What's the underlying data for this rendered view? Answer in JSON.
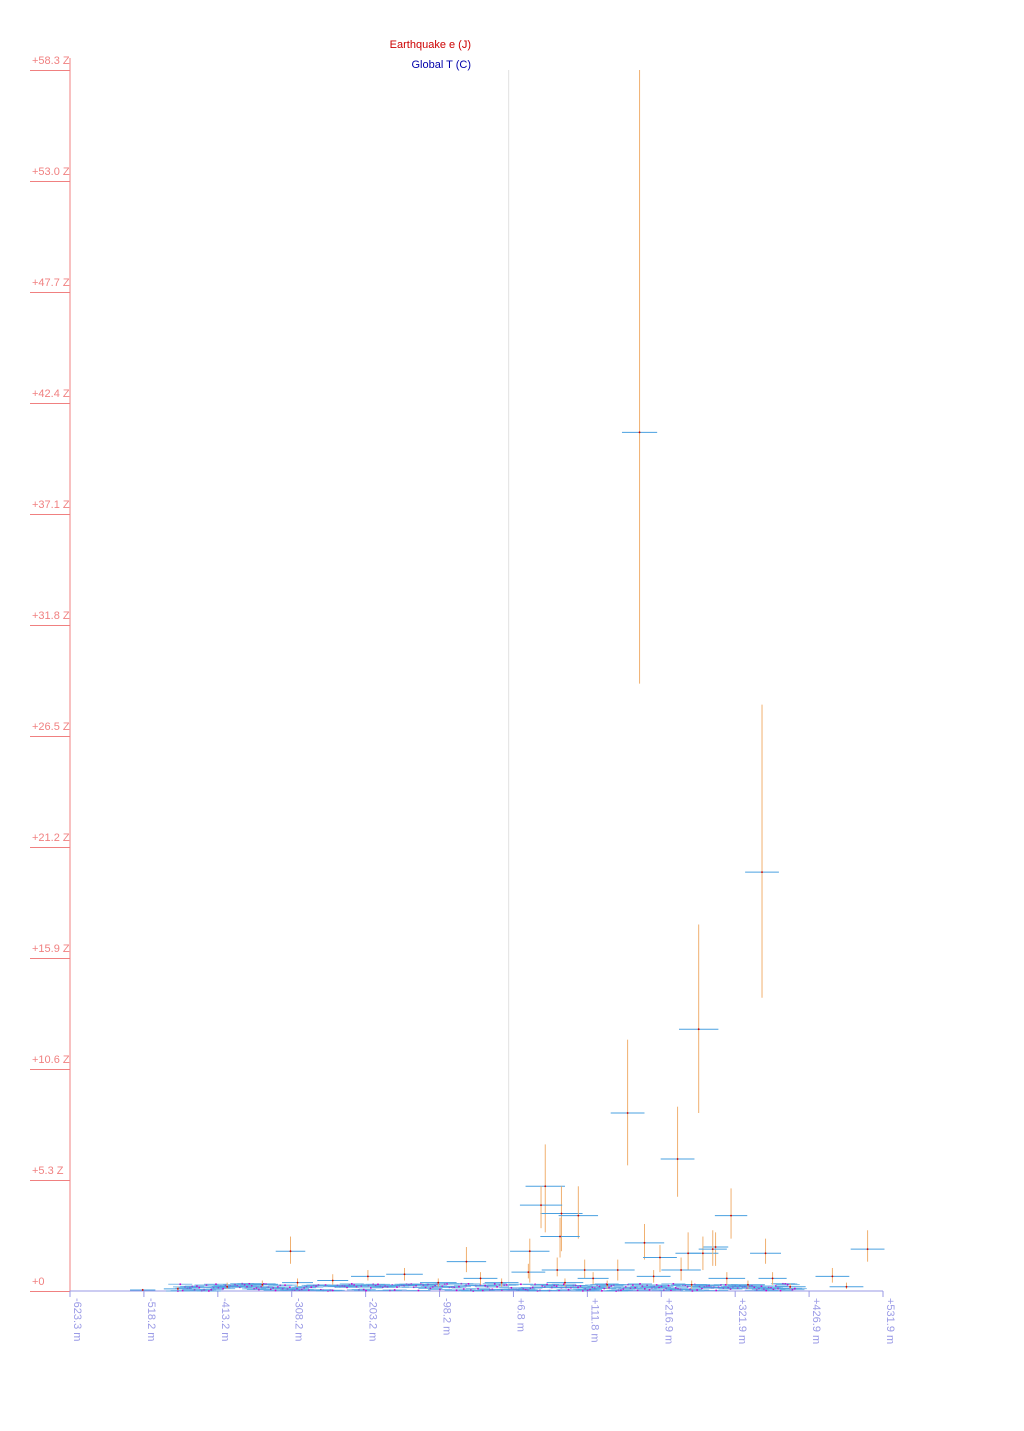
{
  "chart_data": {
    "type": "scatter",
    "legend": {
      "placement": "top-center",
      "entries": [
        {
          "label": "Earthquake e (J)",
          "color": "#cc0000"
        },
        {
          "label": "Global T (C)",
          "color": "#0000aa"
        }
      ]
    },
    "colors": {
      "y_axis": "#f08080",
      "x_axis": "#9a9ae6",
      "vertical_error": "#f0b070",
      "horizontal_error": "#4aa0e0",
      "points": "#cc0000",
      "dense_points": "#cc00cc"
    },
    "x_ticks": [
      "-623.3 m",
      "-518.2 m",
      "-413.2 m",
      "-308.2 m",
      "-203.2 m",
      "-98.2 m",
      "+6.8 m",
      "+111.8 m",
      "+216.9 m",
      "+321.9 m",
      "+426.9 m",
      "+531.9 m"
    ],
    "y_ticks": [
      "+0",
      "+5.3 Z",
      "+10.6 Z",
      "+15.9 Z",
      "+21.2 Z",
      "+26.5 Z",
      "+31.8 Z",
      "+37.1 Z",
      "+42.4 Z",
      "+47.7 Z",
      "+53.0 Z",
      "+58.3 Z"
    ],
    "xlim": [
      -623.3,
      531.9
    ],
    "ylim": [
      0,
      58.3
    ],
    "reference_line_x": 0,
    "grid": false,
    "points": [
      {
        "x": 186,
        "y": 41.0,
        "xerr": 25,
        "ylo": 29.0,
        "yhi": 58.3
      },
      {
        "x": 360,
        "y": 20.0,
        "xerr": 24,
        "ylo": 14.0,
        "yhi": 28.0
      },
      {
        "x": 270,
        "y": 12.5,
        "xerr": 28,
        "ylo": 8.5,
        "yhi": 17.5
      },
      {
        "x": 169,
        "y": 8.5,
        "xerr": 24,
        "ylo": 6.0,
        "yhi": 12.0
      },
      {
        "x": 240,
        "y": 6.3,
        "xerr": 24,
        "ylo": 4.5,
        "yhi": 8.8
      },
      {
        "x": 52,
        "y": 5.0,
        "xerr": 28,
        "ylo": 2.8,
        "yhi": 7.0
      },
      {
        "x": 75,
        "y": 3.7,
        "xerr": 30,
        "ylo": 1.9,
        "yhi": 5.0
      },
      {
        "x": 99,
        "y": 3.6,
        "xerr": 28,
        "ylo": 2.5,
        "yhi": 5.0
      },
      {
        "x": 46,
        "y": 4.1,
        "xerr": 30,
        "ylo": 3.0,
        "yhi": 5.0
      },
      {
        "x": 73,
        "y": 2.6,
        "xerr": 28,
        "ylo": 1.6,
        "yhi": 3.5
      },
      {
        "x": 316,
        "y": 3.6,
        "xerr": 23,
        "ylo": 2.5,
        "yhi": 4.9
      },
      {
        "x": 193,
        "y": 2.3,
        "xerr": 28,
        "ylo": 1.5,
        "yhi": 3.2
      },
      {
        "x": 294,
        "y": 2.1,
        "xerr": 18,
        "ylo": 1.2,
        "yhi": 2.8
      },
      {
        "x": 276,
        "y": 1.8,
        "xerr": 22,
        "ylo": 1.0,
        "yhi": 2.6
      },
      {
        "x": 255,
        "y": 1.8,
        "xerr": 18,
        "ylo": 1.0,
        "yhi": 2.8
      },
      {
        "x": 290,
        "y": 2.0,
        "xerr": 20,
        "ylo": 1.2,
        "yhi": 2.9
      },
      {
        "x": -310,
        "y": 1.9,
        "xerr": 21,
        "ylo": 1.3,
        "yhi": 2.6
      },
      {
        "x": 30,
        "y": 1.9,
        "xerr": 28,
        "ylo": 0.4,
        "yhi": 2.5
      },
      {
        "x": 365,
        "y": 1.8,
        "xerr": 22,
        "ylo": 1.3,
        "yhi": 2.5
      },
      {
        "x": 510,
        "y": 2.0,
        "xerr": 24,
        "ylo": 1.4,
        "yhi": 2.9
      },
      {
        "x": -60,
        "y": 1.4,
        "xerr": 28,
        "ylo": 0.9,
        "yhi": 2.1
      },
      {
        "x": 215,
        "y": 1.6,
        "xerr": 24,
        "ylo": 0.9,
        "yhi": 2.2
      },
      {
        "x": 245,
        "y": 1.0,
        "xerr": 28,
        "ylo": 0.5,
        "yhi": 1.6
      },
      {
        "x": 108,
        "y": 1.0,
        "xerr": 26,
        "ylo": 0.6,
        "yhi": 1.5
      },
      {
        "x": 155,
        "y": 1.0,
        "xerr": 24,
        "ylo": 0.5,
        "yhi": 1.5
      },
      {
        "x": 69,
        "y": 1.0,
        "xerr": 22,
        "ylo": 0.7,
        "yhi": 1.6
      },
      {
        "x": 28,
        "y": 0.9,
        "xerr": 24,
        "ylo": 0.6,
        "yhi": 1.3
      },
      {
        "x": -148,
        "y": 0.8,
        "xerr": 26,
        "ylo": 0.5,
        "yhi": 1.1
      },
      {
        "x": -200,
        "y": 0.7,
        "xerr": 24,
        "ylo": 0.5,
        "yhi": 1.0
      },
      {
        "x": -40,
        "y": 0.6,
        "xerr": 24,
        "ylo": 0.3,
        "yhi": 0.9
      },
      {
        "x": 460,
        "y": 0.7,
        "xerr": 24,
        "ylo": 0.4,
        "yhi": 1.1
      },
      {
        "x": 310,
        "y": 0.6,
        "xerr": 26,
        "ylo": 0.3,
        "yhi": 0.9
      },
      {
        "x": 375,
        "y": 0.6,
        "xerr": 20,
        "ylo": 0.3,
        "yhi": 0.9
      },
      {
        "x": 206,
        "y": 0.7,
        "xerr": 24,
        "ylo": 0.4,
        "yhi": 1.0
      },
      {
        "x": 120,
        "y": 0.6,
        "xerr": 22,
        "ylo": 0.3,
        "yhi": 0.9
      },
      {
        "x": -250,
        "y": 0.5,
        "xerr": 22,
        "ylo": 0.3,
        "yhi": 0.8
      },
      {
        "x": -300,
        "y": 0.4,
        "xerr": 22,
        "ylo": 0.2,
        "yhi": 0.6
      },
      {
        "x": -350,
        "y": 0.3,
        "xerr": 22,
        "ylo": 0.2,
        "yhi": 0.5
      },
      {
        "x": -400,
        "y": 0.2,
        "xerr": 22,
        "ylo": 0.1,
        "yhi": 0.4
      },
      {
        "x": -100,
        "y": 0.4,
        "xerr": 26,
        "ylo": 0.2,
        "yhi": 0.6
      },
      {
        "x": -10,
        "y": 0.4,
        "xerr": 24,
        "ylo": 0.2,
        "yhi": 0.6
      },
      {
        "x": 80,
        "y": 0.4,
        "xerr": 26,
        "ylo": 0.2,
        "yhi": 0.6
      },
      {
        "x": 140,
        "y": 0.3,
        "xerr": 24,
        "ylo": 0.1,
        "yhi": 0.5
      },
      {
        "x": 260,
        "y": 0.3,
        "xerr": 26,
        "ylo": 0.1,
        "yhi": 0.5
      },
      {
        "x": 340,
        "y": 0.3,
        "xerr": 24,
        "ylo": 0.1,
        "yhi": 0.5
      },
      {
        "x": 480,
        "y": 0.2,
        "xerr": 24,
        "ylo": 0.1,
        "yhi": 0.4
      },
      {
        "x": -470,
        "y": 0.1,
        "xerr": 20,
        "ylo": 0.05,
        "yhi": 0.2
      },
      {
        "x": -520,
        "y": 0.05,
        "xerr": 18,
        "ylo": 0.02,
        "yhi": 0.1
      },
      {
        "x": 400,
        "y": 0.2,
        "xerr": 22,
        "ylo": 0.1,
        "yhi": 0.35
      }
    ]
  }
}
